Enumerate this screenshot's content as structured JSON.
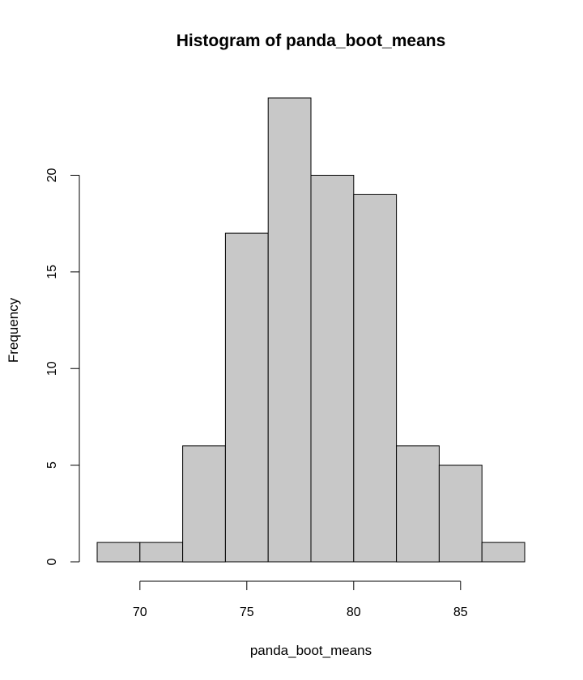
{
  "chart_data": {
    "type": "bar",
    "title": "Histogram of panda_boot_means",
    "xlabel": "panda_boot_means",
    "ylabel": "Frequency",
    "bins": [
      {
        "start": 68,
        "end": 70,
        "count": 1
      },
      {
        "start": 70,
        "end": 72,
        "count": 1
      },
      {
        "start": 72,
        "end": 74,
        "count": 6
      },
      {
        "start": 74,
        "end": 76,
        "count": 17
      },
      {
        "start": 76,
        "end": 78,
        "count": 24
      },
      {
        "start": 78,
        "end": 80,
        "count": 20
      },
      {
        "start": 80,
        "end": 82,
        "count": 19
      },
      {
        "start": 82,
        "end": 84,
        "count": 6
      },
      {
        "start": 84,
        "end": 86,
        "count": 5
      },
      {
        "start": 86,
        "end": 88,
        "count": 1
      }
    ],
    "xlim": [
      68,
      88
    ],
    "ylim": [
      0,
      24
    ],
    "x_ticks": [
      70,
      75,
      80,
      85
    ],
    "y_ticks": [
      0,
      5,
      10,
      15,
      20
    ],
    "grid": false,
    "bar_color": "#c8c8c8",
    "edge_color": "#000000"
  }
}
